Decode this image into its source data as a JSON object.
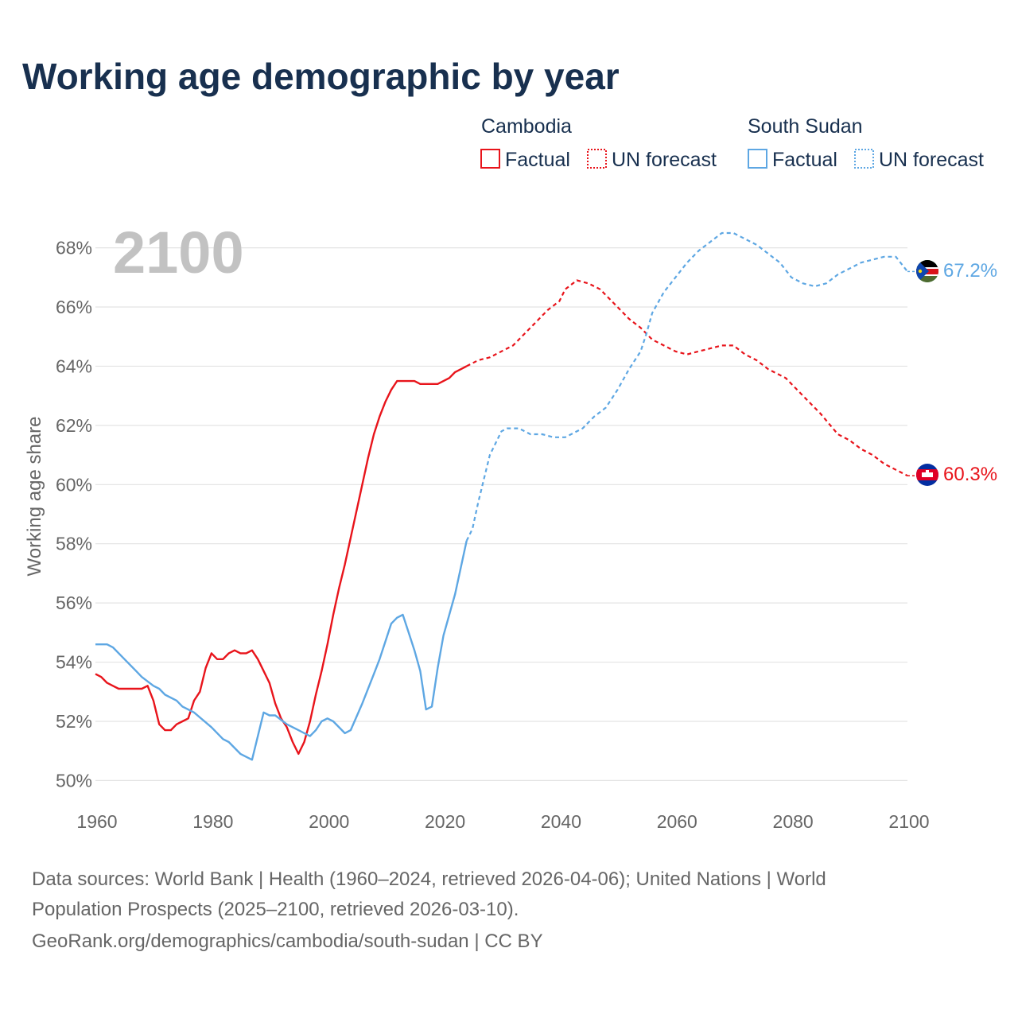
{
  "chart_data": {
    "type": "line",
    "title": "Working age demographic by year",
    "year_watermark": "2100",
    "ylabel": "Working age share",
    "xlabel": "",
    "xlim": [
      1960,
      2100
    ],
    "ylim": [
      49.5,
      68.5
    ],
    "x_ticks": [
      "1960",
      "1980",
      "2000",
      "2020",
      "2040",
      "2060",
      "2080",
      "2100"
    ],
    "y_ticks": [
      "50%",
      "52%",
      "54%",
      "56%",
      "58%",
      "60%",
      "62%",
      "64%",
      "66%",
      "68%"
    ],
    "grid": true,
    "legend_position": "top-right",
    "legend": {
      "factual_label": "Factual",
      "forecast_label": "UN forecast"
    },
    "colors": {
      "cambodia": "#e8141b",
      "south_sudan": "#5ea7e3",
      "title": "#18304f",
      "axis_text": "#666666"
    },
    "series": [
      {
        "name": "Cambodia",
        "end_label": "60.3%",
        "factual": [
          [
            1960,
            53.6
          ],
          [
            1961,
            53.5
          ],
          [
            1962,
            53.3
          ],
          [
            1963,
            53.2
          ],
          [
            1964,
            53.1
          ],
          [
            1965,
            53.1
          ],
          [
            1966,
            53.1
          ],
          [
            1967,
            53.1
          ],
          [
            1968,
            53.1
          ],
          [
            1969,
            53.2
          ],
          [
            1970,
            52.7
          ],
          [
            1971,
            51.9
          ],
          [
            1972,
            51.7
          ],
          [
            1973,
            51.7
          ],
          [
            1974,
            51.9
          ],
          [
            1975,
            52.0
          ],
          [
            1976,
            52.1
          ],
          [
            1977,
            52.7
          ],
          [
            1978,
            53.0
          ],
          [
            1979,
            53.8
          ],
          [
            1980,
            54.3
          ],
          [
            1981,
            54.1
          ],
          [
            1982,
            54.1
          ],
          [
            1983,
            54.3
          ],
          [
            1984,
            54.4
          ],
          [
            1985,
            54.3
          ],
          [
            1986,
            54.3
          ],
          [
            1987,
            54.4
          ],
          [
            1988,
            54.1
          ],
          [
            1989,
            53.7
          ],
          [
            1990,
            53.3
          ],
          [
            1991,
            52.6
          ],
          [
            1992,
            52.1
          ],
          [
            1993,
            51.8
          ],
          [
            1994,
            51.3
          ],
          [
            1995,
            50.9
          ],
          [
            1996,
            51.3
          ],
          [
            1997,
            52.0
          ],
          [
            1998,
            52.9
          ],
          [
            1999,
            53.7
          ],
          [
            2000,
            54.6
          ],
          [
            2001,
            55.6
          ],
          [
            2002,
            56.5
          ],
          [
            2003,
            57.3
          ],
          [
            2004,
            58.2
          ],
          [
            2005,
            59.1
          ],
          [
            2006,
            60.0
          ],
          [
            2007,
            60.9
          ],
          [
            2008,
            61.7
          ],
          [
            2009,
            62.3
          ],
          [
            2010,
            62.8
          ],
          [
            2011,
            63.2
          ],
          [
            2012,
            63.5
          ],
          [
            2013,
            63.5
          ],
          [
            2014,
            63.5
          ],
          [
            2015,
            63.5
          ],
          [
            2016,
            63.4
          ],
          [
            2017,
            63.4
          ],
          [
            2018,
            63.4
          ],
          [
            2019,
            63.4
          ],
          [
            2020,
            63.5
          ],
          [
            2021,
            63.6
          ],
          [
            2022,
            63.8
          ],
          [
            2023,
            63.9
          ],
          [
            2024,
            64.0
          ]
        ],
        "forecast": [
          [
            2024,
            64.0
          ],
          [
            2026,
            64.2
          ],
          [
            2028,
            64.3
          ],
          [
            2030,
            64.5
          ],
          [
            2032,
            64.7
          ],
          [
            2034,
            65.1
          ],
          [
            2036,
            65.5
          ],
          [
            2038,
            65.9
          ],
          [
            2040,
            66.2
          ],
          [
            2041,
            66.6
          ],
          [
            2043,
            66.9
          ],
          [
            2045,
            66.8
          ],
          [
            2047,
            66.6
          ],
          [
            2050,
            66.0
          ],
          [
            2052,
            65.6
          ],
          [
            2054,
            65.3
          ],
          [
            2056,
            64.9
          ],
          [
            2058,
            64.7
          ],
          [
            2060,
            64.5
          ],
          [
            2062,
            64.4
          ],
          [
            2064,
            64.5
          ],
          [
            2066,
            64.6
          ],
          [
            2068,
            64.7
          ],
          [
            2070,
            64.7
          ],
          [
            2072,
            64.4
          ],
          [
            2074,
            64.2
          ],
          [
            2076,
            63.9
          ],
          [
            2079,
            63.6
          ],
          [
            2082,
            63.0
          ],
          [
            2085,
            62.4
          ],
          [
            2088,
            61.7
          ],
          [
            2090,
            61.5
          ],
          [
            2092,
            61.2
          ],
          [
            2094,
            61.0
          ],
          [
            2096,
            60.7
          ],
          [
            2098,
            60.5
          ],
          [
            2100,
            60.3
          ]
        ]
      },
      {
        "name": "South Sudan",
        "end_label": "67.2%",
        "factual": [
          [
            1960,
            54.6
          ],
          [
            1962,
            54.6
          ],
          [
            1963,
            54.5
          ],
          [
            1965,
            54.1
          ],
          [
            1967,
            53.7
          ],
          [
            1968,
            53.5
          ],
          [
            1970,
            53.2
          ],
          [
            1971,
            53.1
          ],
          [
            1972,
            52.9
          ],
          [
            1974,
            52.7
          ],
          [
            1975,
            52.5
          ],
          [
            1977,
            52.3
          ],
          [
            1980,
            51.8
          ],
          [
            1982,
            51.4
          ],
          [
            1983,
            51.3
          ],
          [
            1985,
            50.9
          ],
          [
            1987,
            50.7
          ],
          [
            1989,
            52.3
          ],
          [
            1990,
            52.2
          ],
          [
            1991,
            52.2
          ],
          [
            1993,
            51.9
          ],
          [
            1995,
            51.7
          ],
          [
            1997,
            51.5
          ],
          [
            1998,
            51.7
          ],
          [
            1999,
            52.0
          ],
          [
            2000,
            52.1
          ],
          [
            2001,
            52.0
          ],
          [
            2003,
            51.6
          ],
          [
            2004,
            51.7
          ],
          [
            2006,
            52.6
          ],
          [
            2008,
            53.6
          ],
          [
            2009,
            54.1
          ],
          [
            2011,
            55.3
          ],
          [
            2012,
            55.5
          ],
          [
            2013,
            55.6
          ],
          [
            2014,
            55.0
          ],
          [
            2015,
            54.4
          ],
          [
            2016,
            53.7
          ],
          [
            2017,
            52.4
          ],
          [
            2018,
            52.5
          ],
          [
            2019,
            53.8
          ],
          [
            2020,
            54.9
          ],
          [
            2022,
            56.3
          ],
          [
            2024,
            58.1
          ]
        ],
        "forecast": [
          [
            2024,
            58.1
          ],
          [
            2025,
            58.5
          ],
          [
            2026,
            59.4
          ],
          [
            2027,
            60.2
          ],
          [
            2028,
            61.0
          ],
          [
            2030,
            61.8
          ],
          [
            2031,
            61.9
          ],
          [
            2033,
            61.9
          ],
          [
            2035,
            61.7
          ],
          [
            2037,
            61.7
          ],
          [
            2039,
            61.6
          ],
          [
            2041,
            61.6
          ],
          [
            2044,
            61.9
          ],
          [
            2046,
            62.3
          ],
          [
            2048,
            62.6
          ],
          [
            2050,
            63.2
          ],
          [
            2052,
            63.9
          ],
          [
            2054,
            64.5
          ],
          [
            2055,
            65.1
          ],
          [
            2056,
            65.8
          ],
          [
            2058,
            66.5
          ],
          [
            2060,
            67.0
          ],
          [
            2062,
            67.5
          ],
          [
            2064,
            67.9
          ],
          [
            2066,
            68.2
          ],
          [
            2068,
            68.5
          ],
          [
            2070,
            68.5
          ],
          [
            2072,
            68.3
          ],
          [
            2074,
            68.1
          ],
          [
            2076,
            67.8
          ],
          [
            2078,
            67.5
          ],
          [
            2080,
            67.0
          ],
          [
            2082,
            66.8
          ],
          [
            2084,
            66.7
          ],
          [
            2086,
            66.8
          ],
          [
            2088,
            67.1
          ],
          [
            2090,
            67.3
          ],
          [
            2092,
            67.5
          ],
          [
            2094,
            67.6
          ],
          [
            2096,
            67.7
          ],
          [
            2098,
            67.7
          ],
          [
            2100,
            67.2
          ]
        ]
      }
    ],
    "source": {
      "line1": "Data sources: World Bank | Health (1960–2024, retrieved 2026-04-06); United Nations | World",
      "line2": "Population Prospects (2025–2100, retrieved 2026-03-10).",
      "line3": "GeoRank.org/demographics/cambodia/south-sudan | CC BY"
    }
  }
}
